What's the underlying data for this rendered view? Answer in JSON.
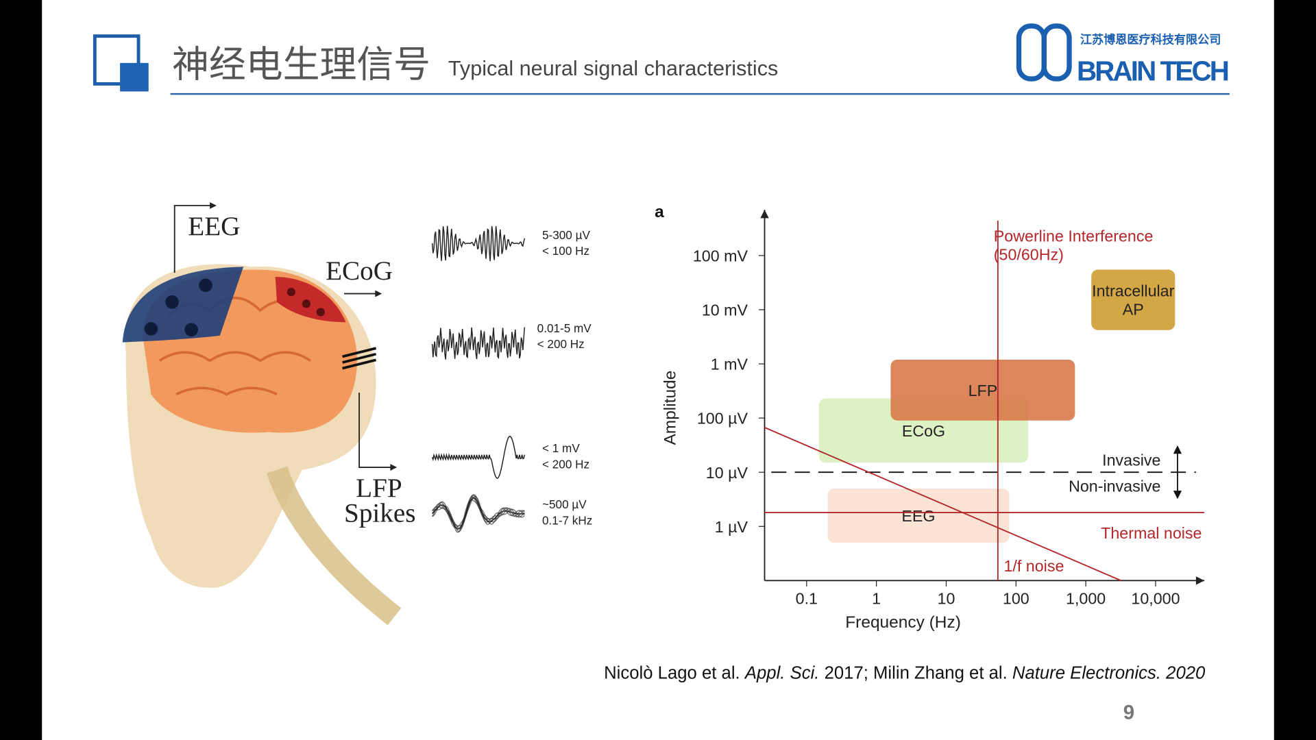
{
  "header": {
    "title_cn": "神经电生理信号",
    "title_en": "Typical neural signal characteristics"
  },
  "logo": {
    "cn": "江苏博恩医疗科技有限公司",
    "en": "BRAIN TECH"
  },
  "illustration": {
    "labels": [
      "EEG",
      "ECoG",
      "LFP",
      "Spikes"
    ],
    "signals": [
      {
        "amplitude": "5-300 µV",
        "frequency": "< 100 Hz"
      },
      {
        "amplitude": "0.01-5 mV",
        "frequency": "< 200 Hz"
      },
      {
        "amplitude": "< 1 mV",
        "frequency": "< 200 Hz"
      },
      {
        "amplitude": "~500 µV",
        "frequency": "0.1-7 kHz"
      }
    ]
  },
  "chart_data": {
    "type": "region",
    "panel_label": "a",
    "x_label": "Frequency (Hz)",
    "y_label": "Amplitude",
    "xscale": "log",
    "yscale": "log",
    "xlim": [
      0.025,
      50000
    ],
    "ylim": [
      0.1,
      700000
    ],
    "xticks": [
      0.1,
      1,
      10,
      100,
      {
        "value": 1000,
        "label": "1,000"
      },
      {
        "value": 10000,
        "label": "10,000"
      }
    ],
    "yticks": [
      {
        "value": 1,
        "label": "1 µV"
      },
      {
        "value": 10,
        "label": "10 µV"
      },
      {
        "value": 100,
        "label": "100 µV"
      },
      {
        "value": 1000,
        "label": "1 mV"
      },
      {
        "value": 10000,
        "label": "10 mV"
      },
      {
        "value": 100000,
        "label": "100 mV"
      }
    ],
    "regions": [
      {
        "name": "EEG",
        "color": "#fbe3d6",
        "x": [
          0.2,
          80
        ],
        "y": [
          0.5,
          5
        ]
      },
      {
        "name": "ECoG",
        "color": "#dcf2c4",
        "x": [
          0.15,
          150
        ],
        "y": [
          15,
          230
        ]
      },
      {
        "name": "LFP",
        "color": "#d9794a",
        "x": [
          1.6,
          700
        ],
        "y": [
          90,
          1200
        ]
      },
      {
        "name": "Intracellular AP",
        "color": "#d3a646",
        "x": [
          1200,
          19000
        ],
        "y": [
          4200,
          55000
        ]
      }
    ],
    "powerline": {
      "labels": [
        "Powerline Interference",
        "(50/60Hz)"
      ],
      "x": 55,
      "color": "#b3262a"
    },
    "thermal_noise": {
      "label": "Thermal noise",
      "y": 1.8,
      "color": "#b3262a"
    },
    "one_over_f": {
      "label": "1/f noise",
      "x": [
        0.025,
        3200
      ],
      "y": [
        67,
        0.1
      ],
      "color": "#b3262a"
    },
    "invasive_boundary": {
      "labels": [
        "Invasive",
        "Non-invasive"
      ],
      "y": 10
    }
  },
  "citation": [
    "Nicolò Lago et al. ",
    "Appl. Sci.",
    " 2017; Milin Zhang et al. ",
    "Nature Electronics. 2020"
  ],
  "page_number": "9"
}
